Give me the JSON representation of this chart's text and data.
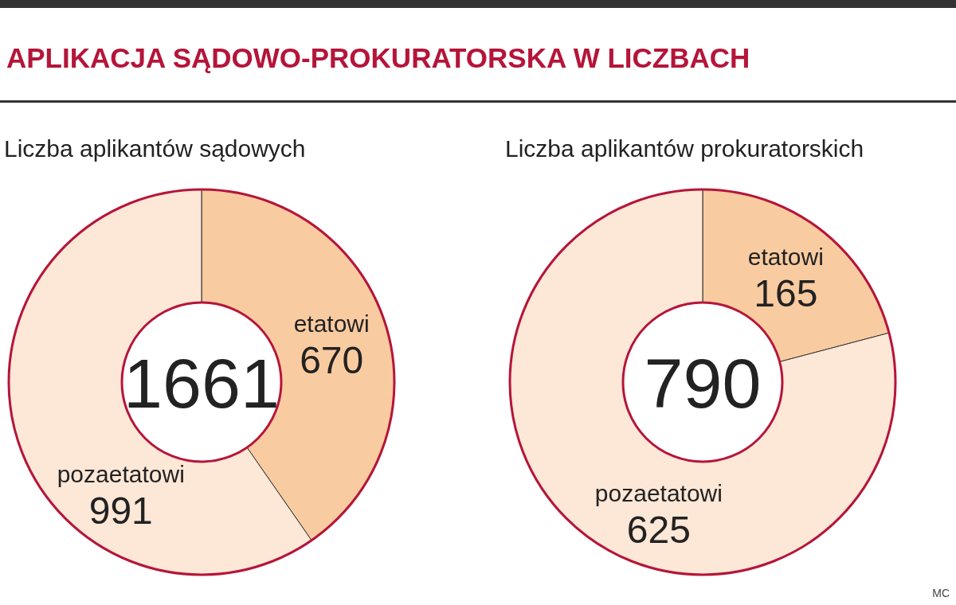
{
  "chart_data": [
    {
      "type": "donut",
      "title": "APLIKACJA SĄDOWO-PROKURATORSKA W LICZBACH",
      "subtitle": "Liczba aplikantów sądowych",
      "categories": [
        "etatowi",
        "pozaetatowi"
      ],
      "values": [
        670,
        991
      ],
      "colors": [
        "#f9cba0",
        "#fde7d6"
      ],
      "data_labels": true,
      "annotations": [
        "1661"
      ]
    },
    {
      "type": "donut",
      "subtitle": "Liczba aplikantów prokuratorskich",
      "categories": [
        "etatowi",
        "pozaetatowi"
      ],
      "values": [
        165,
        625
      ],
      "colors": [
        "#f9cba0",
        "#fde7d6"
      ],
      "data_labels": true,
      "annotations": [
        "790",
        "MC"
      ]
    }
  ]
}
